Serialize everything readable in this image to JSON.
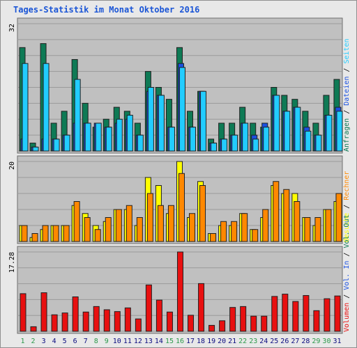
{
  "title": "Tages-Statistik im Monat Oktober 2016",
  "colors": {
    "anfragen": "#0e7a55",
    "dateien": "#1a50e0",
    "seiten": "#22ccff",
    "besuche": "#ffff00",
    "rechner": "#ff8800",
    "volumen": "#e81010",
    "weekend": "#2a9a4a",
    "weekday": "#0a0a80"
  },
  "chart_data": [
    {
      "type": "bar",
      "name": "top",
      "ymax_label": "32",
      "ymax": 32,
      "days": [
        1,
        2,
        3,
        4,
        5,
        6,
        7,
        8,
        9,
        10,
        11,
        12,
        13,
        14,
        15,
        16,
        17,
        18,
        19,
        20,
        21,
        22,
        23,
        24,
        25,
        26,
        27,
        28,
        29,
        30,
        31
      ],
      "weekend_days": [
        1,
        2,
        8,
        9,
        15,
        16,
        22,
        23,
        29,
        30
      ],
      "legend": [
        {
          "label": "Anfragen",
          "color": "anfragen"
        },
        {
          "label": "/",
          "color": "sep"
        },
        {
          "label": "Dateien",
          "color": "dateien"
        },
        {
          "label": "/",
          "color": "sep"
        },
        {
          "label": "Seiten",
          "color": "seiten"
        }
      ],
      "series": [
        {
          "name": "Anfragen",
          "values": [
            26,
            2,
            27,
            7,
            10,
            23,
            12,
            6,
            8,
            11,
            10,
            7,
            20,
            16,
            13,
            26,
            10,
            15,
            3,
            7,
            7,
            11,
            7,
            6,
            16,
            14,
            13,
            10,
            7,
            14,
            18
          ]
        },
        {
          "name": "Dateien",
          "values": [
            3,
            1,
            3,
            3,
            4,
            7,
            7,
            7,
            6,
            7,
            8,
            4,
            15,
            14,
            6,
            22,
            6,
            15,
            2,
            3,
            4,
            7,
            4,
            7,
            14,
            10,
            11,
            6,
            4,
            9,
            11
          ]
        },
        {
          "name": "Seiten",
          "values": [
            22,
            1,
            22,
            3,
            4,
            18,
            7,
            7,
            6,
            8,
            9,
            4,
            16,
            14,
            6,
            21,
            6,
            15,
            2,
            3,
            4,
            7,
            3,
            6,
            14,
            10,
            11,
            5,
            4,
            9,
            10
          ]
        }
      ]
    },
    {
      "type": "bar",
      "name": "middle",
      "ymax_label": "20",
      "ymax": 20,
      "legend": [
        {
          "label": "Besuche",
          "color": "besuche"
        },
        {
          "label": "/",
          "color": "sep"
        },
        {
          "label": "Rechner",
          "color": "rechner"
        }
      ],
      "series": [
        {
          "name": "Besuche",
          "values": [
            4,
            1,
            3,
            4,
            4,
            9,
            7,
            4,
            5,
            8,
            8,
            4,
            16,
            14,
            7,
            20,
            6,
            15,
            2,
            4,
            4,
            7,
            3,
            6,
            14,
            12,
            12,
            6,
            4,
            8,
            10
          ]
        },
        {
          "name": "Rechner",
          "values": [
            4,
            2,
            4,
            4,
            4,
            10,
            6,
            3,
            6,
            8,
            9,
            6,
            12,
            9,
            9,
            17,
            7,
            14,
            2,
            5,
            5,
            7,
            3,
            8,
            15,
            13,
            10,
            6,
            6,
            8,
            12
          ]
        }
      ]
    },
    {
      "type": "bar",
      "name": "bottom",
      "ymax_label": "17.28",
      "ymax": 17.28,
      "legend": [
        {
          "label": "Volumen",
          "color": "volumen"
        },
        {
          "label": "/",
          "color": "sep"
        },
        {
          "label": "Vol. In",
          "color": "dateien"
        },
        {
          "label": "/",
          "color": "sep"
        },
        {
          "label": "Vol. Out",
          "color": "anfragen"
        }
      ],
      "series": [
        {
          "name": "Volumen",
          "values": [
            8.2,
            1.0,
            8.4,
            3.6,
            4.0,
            7.5,
            4.2,
            5.4,
            4.7,
            4.3,
            5.1,
            2.7,
            10.1,
            6.8,
            4.2,
            17.28,
            3.5,
            10.4,
            1.3,
            2.3,
            5.2,
            5.4,
            3.3,
            3.3,
            7.6,
            8.1,
            6.5,
            7.8,
            4.5,
            7.1,
            7.7
          ]
        }
      ]
    }
  ]
}
